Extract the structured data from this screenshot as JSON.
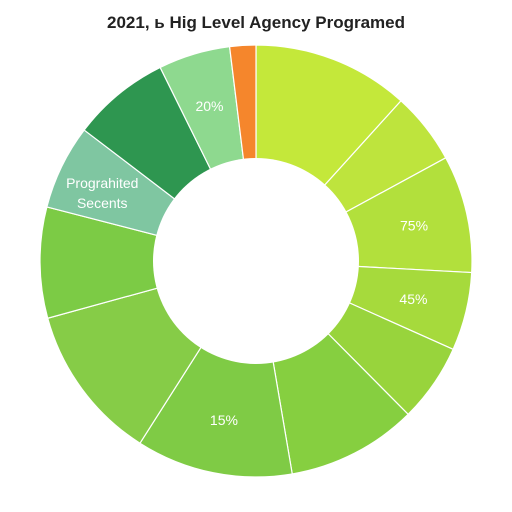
{
  "chart_data": {
    "type": "pie",
    "title": "2021, ь Hig Level Agency Programed",
    "donut": true,
    "labels": [
      "",
      "",
      "",
      "",
      "",
      "",
      "",
      "",
      "",
      "Prograhited Secents",
      "",
      "",
      ""
    ],
    "values": [
      12,
      5.5,
      9,
      6,
      6,
      10,
      12,
      12,
      8.5,
      6.5,
      7.5,
      5.5,
      2
    ],
    "colors": [
      "#c4e83a",
      "#bee43d",
      "#b2e03c",
      "#a6da3c",
      "#98d43c",
      "#86cf40",
      "#7fcb45",
      "#86cc47",
      "#7ccb45",
      "#7fc6a1",
      "#2e9650",
      "#8ed98f",
      "#f5862c"
    ],
    "data_labels": [
      "",
      "",
      "75%",
      "45%",
      "",
      "",
      "15%",
      "",
      "",
      "",
      "",
      "20%",
      ""
    ]
  }
}
